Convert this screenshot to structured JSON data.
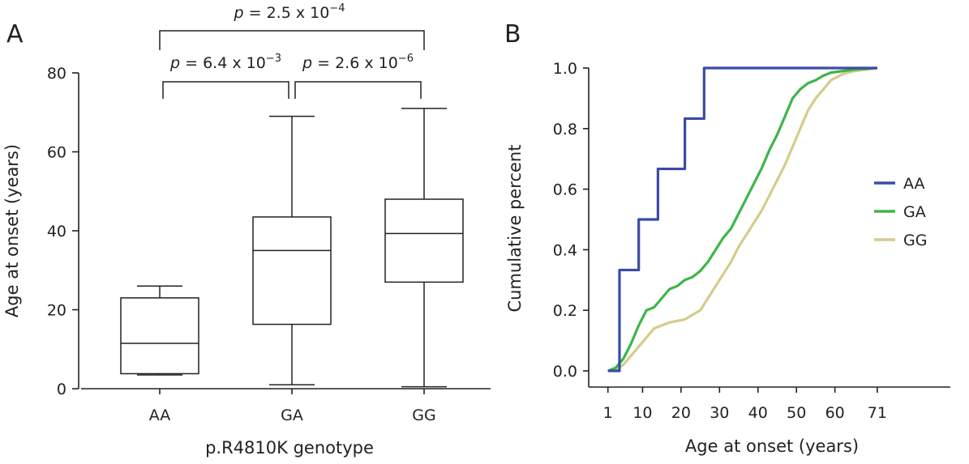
{
  "chart_data": [
    {
      "panel": "A",
      "type": "box",
      "categories": [
        "AA",
        "GA",
        "GG"
      ],
      "xlabel": "p.R4810K genotype",
      "ylabel": "Age at onset (years)",
      "ylim": [
        0,
        80
      ],
      "yticks": [
        "0",
        "20",
        "40",
        "60",
        "80"
      ],
      "boxes": [
        {
          "category": "AA",
          "min": 3.5,
          "q1": 3.8,
          "median": 11.5,
          "q3": 23,
          "max": 26
        },
        {
          "category": "GA",
          "min": 1,
          "q1": 16.3,
          "median": 35,
          "q3": 43.5,
          "max": 69
        },
        {
          "category": "GG",
          "min": 0.5,
          "q1": 27,
          "median": 39.3,
          "q3": 48,
          "max": 71
        }
      ],
      "comparisons": [
        {
          "from": "AA",
          "to": "GA",
          "p_prefix": "p",
          "p_body": " = 6.4 x 10",
          "p_exp": "−3"
        },
        {
          "from": "GA",
          "to": "GG",
          "p_prefix": "p",
          "p_body": " = 2.6 x 10",
          "p_exp": "−6"
        },
        {
          "from": "AA",
          "to": "GG",
          "p_prefix": "p",
          "p_body": " = 2.5 x 10",
          "p_exp": "−4"
        }
      ]
    },
    {
      "panel": "B",
      "type": "line",
      "xlabel": "Age at onset (years)",
      "ylabel": "Cumulative percent",
      "xlim": [
        -4,
        90
      ],
      "ylim": [
        0,
        1
      ],
      "xticks": [
        "1",
        "10",
        "20",
        "30",
        "40",
        "50",
        "60",
        "71"
      ],
      "xtick_values": [
        1,
        10,
        20,
        30,
        40,
        50,
        60,
        71
      ],
      "yticks": [
        "0.0",
        "0.2",
        "0.4",
        "0.6",
        "0.8",
        "1.0"
      ],
      "ytick_values": [
        0,
        0.2,
        0.4,
        0.6,
        0.8,
        1.0
      ],
      "legend_position": "right",
      "series": [
        {
          "name": "AA",
          "color": "#3b4ba6",
          "step": true,
          "x": [
            1,
            4,
            8,
            9,
            13,
            14,
            20,
            21,
            25,
            26,
            71
          ],
          "y": [
            0,
            0.333,
            0.333,
            0.5,
            0.5,
            0.667,
            0.667,
            0.833,
            0.833,
            1.0,
            1.0
          ]
        },
        {
          "name": "GA",
          "color": "#3fb54a",
          "step": false,
          "x": [
            1,
            3,
            5,
            7,
            9,
            11,
            13,
            15,
            17,
            19,
            21,
            23,
            25,
            27,
            29,
            31,
            33,
            35,
            37,
            39,
            41,
            43,
            45,
            47,
            49,
            51,
            53,
            55,
            57,
            59,
            62,
            65,
            71
          ],
          "y": [
            0,
            0.01,
            0.04,
            0.09,
            0.15,
            0.2,
            0.21,
            0.24,
            0.27,
            0.28,
            0.3,
            0.31,
            0.33,
            0.36,
            0.4,
            0.44,
            0.47,
            0.52,
            0.57,
            0.62,
            0.67,
            0.73,
            0.78,
            0.84,
            0.9,
            0.93,
            0.95,
            0.96,
            0.975,
            0.985,
            0.99,
            0.995,
            1.0
          ]
        },
        {
          "name": "GG",
          "color": "#d4cc8a",
          "step": false,
          "x": [
            1,
            3,
            5,
            7,
            9,
            11,
            13,
            15,
            17,
            19,
            21,
            23,
            25,
            27,
            29,
            31,
            33,
            35,
            37,
            39,
            41,
            43,
            45,
            47,
            49,
            51,
            53,
            55,
            57,
            59,
            62,
            65,
            71
          ],
          "y": [
            0,
            0.005,
            0.02,
            0.05,
            0.08,
            0.11,
            0.14,
            0.15,
            0.16,
            0.165,
            0.17,
            0.185,
            0.2,
            0.24,
            0.28,
            0.32,
            0.36,
            0.41,
            0.45,
            0.49,
            0.53,
            0.58,
            0.63,
            0.68,
            0.74,
            0.8,
            0.86,
            0.9,
            0.93,
            0.96,
            0.98,
            0.99,
            1.0
          ]
        }
      ]
    }
  ]
}
